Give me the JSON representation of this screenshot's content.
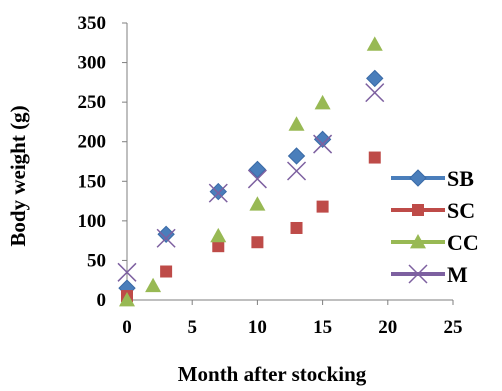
{
  "chart_data": {
    "type": "scatter",
    "xlabel": "Month after stocking",
    "ylabel": "Body weight (g)",
    "xlim": [
      0,
      25
    ],
    "ylim": [
      0,
      350
    ],
    "xticks": [
      "0",
      "5",
      "10",
      "15",
      "20",
      "25"
    ],
    "yticks": [
      "0",
      "50",
      "100",
      "150",
      "200",
      "250",
      "300",
      "350"
    ],
    "grid": false,
    "legend_position": "right",
    "series": [
      {
        "name": "SB",
        "marker": "diamond",
        "color": "#4a7ebb",
        "connect": true,
        "x": [
          0,
          3,
          7,
          10,
          13,
          15,
          19
        ],
        "y": [
          15,
          83,
          137,
          165,
          182,
          203,
          280
        ]
      },
      {
        "name": "SC",
        "marker": "square",
        "color": "#be4b48",
        "connect": false,
        "x": [
          0,
          3,
          7,
          10,
          13,
          15,
          19
        ],
        "y": [
          5,
          36,
          68,
          73,
          91,
          118,
          180
        ]
      },
      {
        "name": "CC",
        "marker": "triangle",
        "color": "#98b954",
        "connect": false,
        "x": [
          0,
          2,
          7,
          10,
          13,
          15,
          19
        ],
        "y": [
          0,
          18,
          81,
          121,
          222,
          249,
          323
        ]
      },
      {
        "name": "M",
        "marker": "x",
        "color": "#7d60a0",
        "connect": true,
        "x": [
          0,
          3,
          7,
          10,
          13,
          15,
          19
        ],
        "y": [
          35,
          78,
          135,
          153,
          163,
          197,
          262
        ]
      }
    ]
  }
}
